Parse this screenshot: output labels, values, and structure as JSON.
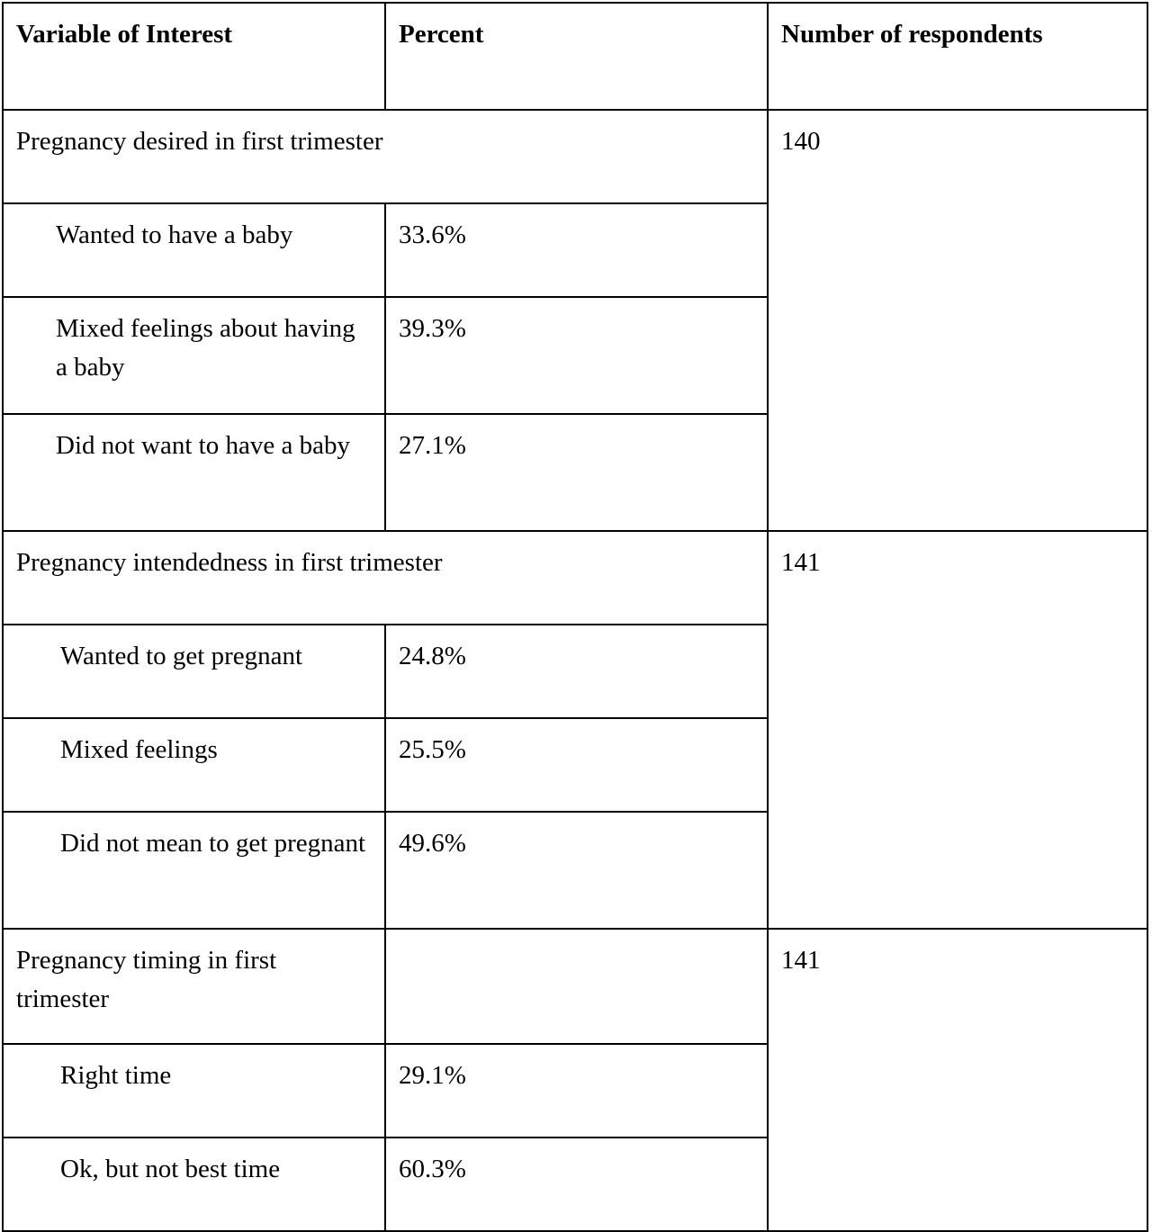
{
  "headers": {
    "variable": "Variable of Interest",
    "percent": "Percent",
    "respondents": "Number of respondents"
  },
  "groups": [
    {
      "title": "Pregnancy desired in first trimester",
      "respondents": "140",
      "items": [
        {
          "label": "Wanted to have a baby",
          "percent": "33.6%"
        },
        {
          "label": "Mixed feelings about having a baby",
          "percent": "39.3%"
        },
        {
          "label": "Did not want to have a baby",
          "percent": "27.1%"
        }
      ]
    },
    {
      "title": "Pregnancy intendedness in first trimester",
      "respondents": "141",
      "items": [
        {
          "label": "Wanted to get pregnant",
          "percent": "24.8%"
        },
        {
          "label": "Mixed feelings",
          "percent": "25.5%"
        },
        {
          "label": "Did not mean to get pregnant",
          "percent": "49.6%"
        }
      ]
    },
    {
      "title": "Pregnancy timing in first trimester",
      "respondents": "141",
      "items": [
        {
          "label": "Right time",
          "percent": "29.1%"
        },
        {
          "label": "Ok, but not best time",
          "percent": "60.3%"
        }
      ]
    }
  ]
}
